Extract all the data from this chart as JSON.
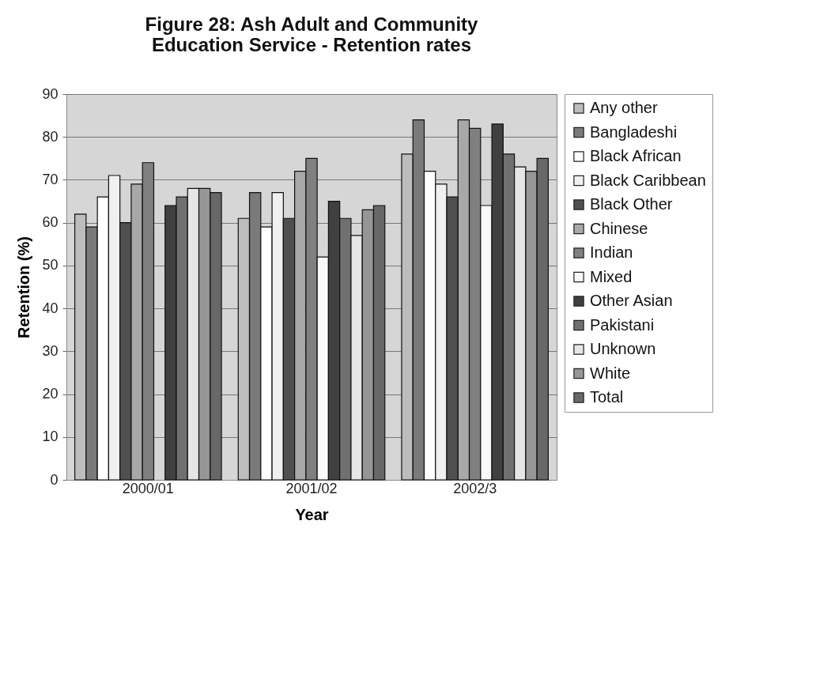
{
  "chart_data": {
    "type": "bar",
    "title": "Figure 28: Ash Adult and Community Education Service - Retention rates",
    "xlabel": "Year",
    "ylabel": "Retention (%)",
    "categories": [
      "2000/01",
      "2001/02",
      "2002/3"
    ],
    "ylim": [
      0,
      90
    ],
    "yticks": [
      0,
      10,
      20,
      30,
      40,
      50,
      60,
      70,
      80,
      90
    ],
    "grid": "y",
    "legend": "right",
    "series": [
      {
        "name": "Any other",
        "color": "#bdbdbd",
        "values": [
          62,
          61,
          76
        ]
      },
      {
        "name": "Bangladeshi",
        "color": "#7a7a7a",
        "values": [
          59,
          67,
          84
        ]
      },
      {
        "name": "Black African",
        "color": "#ffffff",
        "values": [
          66,
          59,
          72
        ]
      },
      {
        "name": "Black Caribbean",
        "color": "#f0f0f0",
        "values": [
          71,
          67,
          69
        ]
      },
      {
        "name": "Black Other",
        "color": "#505050",
        "values": [
          60,
          61,
          66
        ]
      },
      {
        "name": "Chinese",
        "color": "#a8a8a8",
        "values": [
          69,
          72,
          84
        ]
      },
      {
        "name": "Indian",
        "color": "#808080",
        "values": [
          74,
          75,
          82
        ]
      },
      {
        "name": "Mixed",
        "color": "#f8f8f8",
        "values": [
          null,
          52,
          64
        ]
      },
      {
        "name": "Other Asian",
        "color": "#404040",
        "values": [
          64,
          65,
          83
        ]
      },
      {
        "name": "Pakistani",
        "color": "#707070",
        "values": [
          66,
          61,
          76
        ]
      },
      {
        "name": "Unknown",
        "color": "#e6e6e6",
        "values": [
          68,
          57,
          73
        ]
      },
      {
        "name": "White",
        "color": "#969696",
        "values": [
          68,
          63,
          72
        ]
      },
      {
        "name": "Total",
        "color": "#686868",
        "values": [
          67,
          64,
          75
        ]
      }
    ]
  }
}
